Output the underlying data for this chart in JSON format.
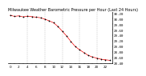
{
  "title": "Milwaukee Weather Barometric Pressure per Hour (Last 24 Hours)",
  "hours": [
    0,
    1,
    2,
    3,
    4,
    5,
    6,
    7,
    8,
    9,
    10,
    11,
    12,
    13,
    14,
    15,
    16,
    17,
    18,
    19,
    20,
    21,
    22,
    23
  ],
  "pressure": [
    30.12,
    30.08,
    30.1,
    30.06,
    30.09,
    30.07,
    30.05,
    30.03,
    29.98,
    29.92,
    29.85,
    29.72,
    29.55,
    29.38,
    29.18,
    29.0,
    28.88,
    28.78,
    28.68,
    28.62,
    28.58,
    28.54,
    28.52,
    28.5
  ],
  "line_color": "#ee0000",
  "marker_color": "#000000",
  "bg_color": "#ffffff",
  "grid_color": "#999999",
  "tick_label_color": "#000000",
  "ylim_min": 28.4,
  "ylim_max": 30.25,
  "ylabel_fontsize": 3.0,
  "xlabel_fontsize": 3.0,
  "title_fontsize": 3.5,
  "ytick_interval": 0.2,
  "vgrid_positions": [
    4,
    8,
    12,
    16,
    20
  ]
}
